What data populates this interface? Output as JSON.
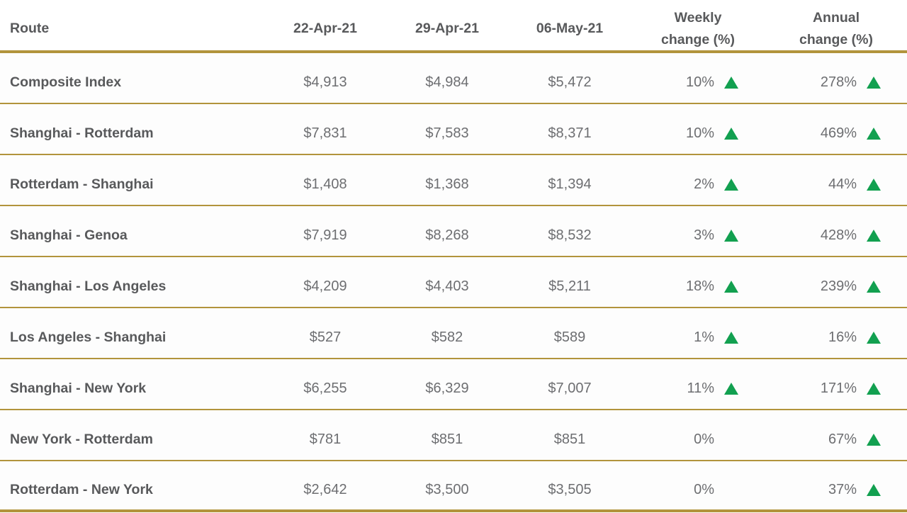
{
  "colors": {
    "gold_line": "#B2943C",
    "up_green": "#12A050",
    "header_text": "#58595B",
    "value_text": "#6D6E71",
    "background": "#FFFFFF"
  },
  "icons": {
    "up_triangle": "triangle-up-icon"
  },
  "table": {
    "header": {
      "route": "Route",
      "date1": "22-Apr-21",
      "date2": "29-Apr-21",
      "date3": "06-May-21",
      "weekly_line1": "Weekly",
      "weekly_line2": "change (%)",
      "annual_line1": "Annual",
      "annual_line2": "change (%)"
    },
    "rows": [
      {
        "route": "Composite Index",
        "v1": "$4,913",
        "v2": "$4,984",
        "v3": "$5,472",
        "weekly": "10%",
        "weekly_up": true,
        "annual": "278%",
        "annual_up": true
      },
      {
        "route": "Shanghai - Rotterdam",
        "v1": "$7,831",
        "v2": "$7,583",
        "v3": "$8,371",
        "weekly": "10%",
        "weekly_up": true,
        "annual": "469%",
        "annual_up": true
      },
      {
        "route": "Rotterdam - Shanghai",
        "v1": "$1,408",
        "v2": "$1,368",
        "v3": "$1,394",
        "weekly": "2%",
        "weekly_up": true,
        "annual": "44%",
        "annual_up": true
      },
      {
        "route": "Shanghai - Genoa",
        "v1": "$7,919",
        "v2": "$8,268",
        "v3": "$8,532",
        "weekly": "3%",
        "weekly_up": true,
        "annual": "428%",
        "annual_up": true
      },
      {
        "route": "Shanghai - Los Angeles",
        "v1": "$4,209",
        "v2": "$4,403",
        "v3": "$5,211",
        "weekly": "18%",
        "weekly_up": true,
        "annual": "239%",
        "annual_up": true
      },
      {
        "route": "Los Angeles - Shanghai",
        "v1": "$527",
        "v2": "$582",
        "v3": "$589",
        "weekly": "1%",
        "weekly_up": true,
        "annual": "16%",
        "annual_up": true
      },
      {
        "route": "Shanghai - New York",
        "v1": "$6,255",
        "v2": "$6,329",
        "v3": "$7,007",
        "weekly": "11%",
        "weekly_up": true,
        "annual": "171%",
        "annual_up": true
      },
      {
        "route": "New York - Rotterdam",
        "v1": "$781",
        "v2": "$851",
        "v3": "$851",
        "weekly": "0%",
        "weekly_up": false,
        "annual": "67%",
        "annual_up": true
      },
      {
        "route": "Rotterdam - New York",
        "v1": "$2,642",
        "v2": "$3,500",
        "v3": "$3,505",
        "weekly": "0%",
        "weekly_up": false,
        "annual": "37%",
        "annual_up": true
      }
    ]
  },
  "chart_data": {
    "type": "table",
    "title": "",
    "columns": [
      "Route",
      "22-Apr-21",
      "29-Apr-21",
      "06-May-21",
      "Weekly change (%)",
      "Annual change (%)"
    ],
    "rows": [
      [
        "Composite Index",
        4913,
        4984,
        5472,
        10,
        278
      ],
      [
        "Shanghai - Rotterdam",
        7831,
        7583,
        8371,
        10,
        469
      ],
      [
        "Rotterdam - Shanghai",
        1408,
        1368,
        1394,
        2,
        44
      ],
      [
        "Shanghai - Genoa",
        7919,
        8268,
        8532,
        3,
        428
      ],
      [
        "Shanghai - Los Angeles",
        4209,
        4403,
        5211,
        18,
        239
      ],
      [
        "Los Angeles - Shanghai",
        527,
        582,
        589,
        1,
        16
      ],
      [
        "Shanghai - New York",
        6255,
        6329,
        7007,
        11,
        171
      ],
      [
        "New York - Rotterdam",
        781,
        851,
        851,
        0,
        67
      ],
      [
        "Rotterdam - New York",
        2642,
        3500,
        3505,
        0,
        37
      ]
    ],
    "notes": "Values in USD. Green up-triangle marks positive change; no marker when change is 0%."
  }
}
